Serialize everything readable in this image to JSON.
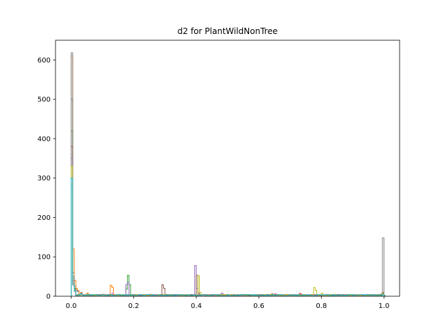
{
  "chart_data": {
    "type": "histogram-step",
    "title": "d2 for PlantWildNonTree",
    "xlabel": "",
    "ylabel": "",
    "xlim": [
      -0.05,
      1.05
    ],
    "ylim": [
      0,
      650
    ],
    "xticks": [
      0.0,
      0.2,
      0.4,
      0.6,
      0.8,
      1.0
    ],
    "xtick_labels": [
      "0.0",
      "0.2",
      "0.4",
      "0.6",
      "0.8",
      "1.0"
    ],
    "yticks": [
      0,
      100,
      200,
      300,
      400,
      500,
      600
    ],
    "ytick_labels": [
      "0",
      "100",
      "200",
      "300",
      "400",
      "500",
      "600"
    ],
    "grid": false,
    "legend": "none",
    "bin_width": 0.005,
    "series": [
      {
        "color": "#1f77b4",
        "peaks": [
          [
            0.0,
            500
          ],
          [
            0.005,
            60
          ],
          [
            0.01,
            25
          ],
          [
            0.015,
            15
          ],
          [
            0.02,
            12
          ],
          [
            0.03,
            8
          ],
          [
            0.05,
            5
          ],
          [
            0.1,
            3
          ],
          [
            0.3,
            2
          ],
          [
            0.5,
            2
          ],
          [
            0.7,
            3
          ],
          [
            0.9,
            3
          ],
          [
            0.995,
            8
          ]
        ]
      },
      {
        "color": "#ff7f0e",
        "peaks": [
          [
            0.0,
            610
          ],
          [
            0.005,
            120
          ],
          [
            0.01,
            40
          ],
          [
            0.015,
            20
          ],
          [
            0.02,
            15
          ],
          [
            0.03,
            10
          ],
          [
            0.05,
            8
          ],
          [
            0.1,
            5
          ],
          [
            0.125,
            28
          ],
          [
            0.13,
            22
          ],
          [
            0.2,
            4
          ],
          [
            0.4,
            3
          ],
          [
            0.6,
            3
          ],
          [
            0.8,
            3
          ],
          [
            0.995,
            10
          ]
        ]
      },
      {
        "color": "#2ca02c",
        "peaks": [
          [
            0.0,
            420
          ],
          [
            0.005,
            45
          ],
          [
            0.01,
            20
          ],
          [
            0.03,
            8
          ],
          [
            0.1,
            4
          ],
          [
            0.175,
            18
          ],
          [
            0.18,
            53
          ],
          [
            0.185,
            30
          ],
          [
            0.3,
            4
          ],
          [
            0.5,
            3
          ],
          [
            0.7,
            3
          ],
          [
            0.995,
            6
          ]
        ]
      },
      {
        "color": "#d62728",
        "peaks": [
          [
            0.0,
            380
          ],
          [
            0.005,
            40
          ],
          [
            0.01,
            18
          ],
          [
            0.03,
            8
          ],
          [
            0.1,
            4
          ],
          [
            0.3,
            3
          ],
          [
            0.5,
            3
          ],
          [
            0.65,
            6
          ],
          [
            0.7,
            4
          ],
          [
            0.73,
            7
          ],
          [
            0.9,
            3
          ],
          [
            0.995,
            5
          ]
        ]
      },
      {
        "color": "#9467bd",
        "peaks": [
          [
            0.0,
            350
          ],
          [
            0.005,
            35
          ],
          [
            0.01,
            15
          ],
          [
            0.03,
            7
          ],
          [
            0.1,
            4
          ],
          [
            0.175,
            30
          ],
          [
            0.18,
            35
          ],
          [
            0.3,
            3
          ],
          [
            0.395,
            78
          ],
          [
            0.4,
            20
          ],
          [
            0.48,
            8
          ],
          [
            0.6,
            3
          ],
          [
            0.8,
            3
          ],
          [
            0.995,
            5
          ]
        ]
      },
      {
        "color": "#8c564b",
        "peaks": [
          [
            0.0,
            300
          ],
          [
            0.005,
            30
          ],
          [
            0.01,
            14
          ],
          [
            0.03,
            6
          ],
          [
            0.1,
            4
          ],
          [
            0.29,
            29
          ],
          [
            0.295,
            20
          ],
          [
            0.4,
            53
          ],
          [
            0.405,
            8
          ],
          [
            0.6,
            3
          ],
          [
            0.64,
            6
          ],
          [
            0.8,
            3
          ],
          [
            0.995,
            4
          ]
        ]
      },
      {
        "color": "#e377c2",
        "peaks": [
          [
            0.0,
            280
          ],
          [
            0.005,
            28
          ],
          [
            0.01,
            12
          ],
          [
            0.03,
            6
          ],
          [
            0.1,
            4
          ],
          [
            0.13,
            8
          ],
          [
            0.25,
            5
          ],
          [
            0.45,
            4
          ],
          [
            0.65,
            5
          ],
          [
            0.85,
            3
          ],
          [
            0.995,
            5
          ]
        ]
      },
      {
        "color": "#7f7f7f",
        "peaks": [
          [
            0.0,
            618
          ],
          [
            0.005,
            50
          ],
          [
            0.01,
            18
          ],
          [
            0.03,
            8
          ],
          [
            0.1,
            4
          ],
          [
            0.3,
            3
          ],
          [
            0.5,
            3
          ],
          [
            0.7,
            3
          ],
          [
            0.9,
            3
          ],
          [
            0.99,
            6
          ],
          [
            0.995,
            148
          ]
        ]
      },
      {
        "color": "#bcbd22",
        "peaks": [
          [
            0.0,
            330
          ],
          [
            0.005,
            32
          ],
          [
            0.01,
            14
          ],
          [
            0.03,
            6
          ],
          [
            0.1,
            4
          ],
          [
            0.3,
            3
          ],
          [
            0.405,
            52
          ],
          [
            0.41,
            10
          ],
          [
            0.55,
            4
          ],
          [
            0.775,
            22
          ],
          [
            0.78,
            15
          ],
          [
            0.8,
            8
          ],
          [
            0.84,
            5
          ],
          [
            0.995,
            6
          ]
        ]
      },
      {
        "color": "#17becf",
        "peaks": [
          [
            0.0,
            300
          ],
          [
            0.005,
            30
          ],
          [
            0.01,
            13
          ],
          [
            0.03,
            6
          ],
          [
            0.1,
            4
          ],
          [
            0.3,
            3
          ],
          [
            0.5,
            4
          ],
          [
            0.6,
            3
          ],
          [
            0.8,
            3
          ],
          [
            0.995,
            4
          ]
        ]
      }
    ]
  }
}
